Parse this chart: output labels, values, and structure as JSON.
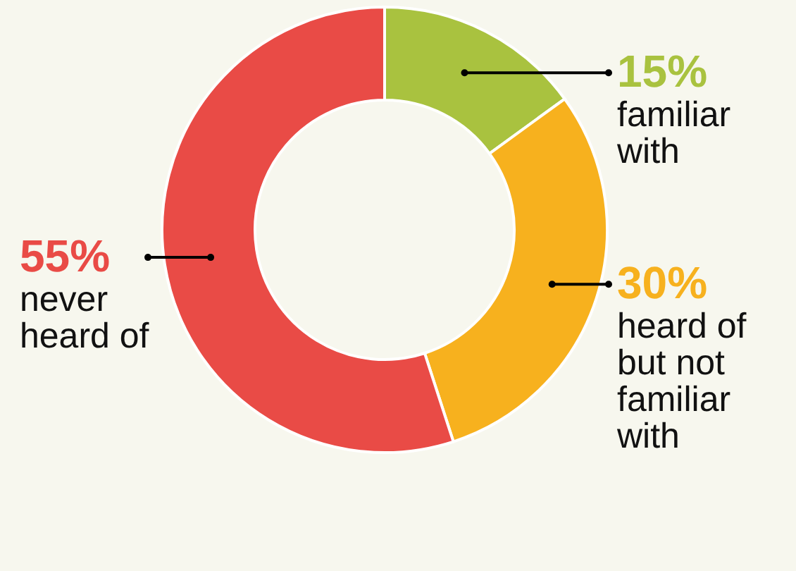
{
  "chart_data": {
    "type": "donut",
    "categories": [
      "familiar with",
      "heard of but not familiar with",
      "never heard of"
    ],
    "values": [
      15,
      30,
      55
    ],
    "colors": [
      "#a9c23f",
      "#f7b11e",
      "#e94b46"
    ],
    "value_labels": [
      "15%",
      "30%",
      "55%"
    ]
  }
}
